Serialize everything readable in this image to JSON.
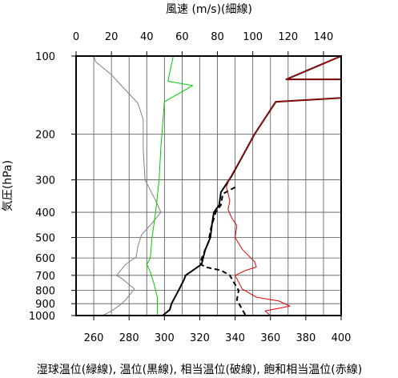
{
  "chart_data": {
    "type": "line",
    "top_axis_label": "風速 (m/s)(細線)",
    "bottom_axis_label": "湿球温位(緑線), 温位(黒線), 相当温位(破線), 飽和相当温位(赤線)",
    "ylabel": "気圧(hPa)",
    "y_scale": "log",
    "y_reversed": true,
    "ylim": [
      100,
      1000
    ],
    "y_ticks": [
      100,
      200,
      300,
      400,
      500,
      600,
      700,
      800,
      900,
      1000
    ],
    "temp_axis": {
      "range": [
        250,
        400
      ],
      "ticks": [
        260,
        280,
        300,
        320,
        340,
        360,
        380,
        400
      ]
    },
    "wind_axis": {
      "range": [
        0,
        150
      ],
      "ticks": [
        0,
        20,
        40,
        60,
        80,
        100,
        120,
        140
      ]
    },
    "grid": true,
    "series": [
      {
        "axis": "wind",
        "color": "#808080",
        "dash": false,
        "points": [
          [
            10,
            100
          ],
          [
            11,
            105
          ],
          [
            20,
            118
          ],
          [
            27,
            133
          ],
          [
            35,
            152
          ],
          [
            38,
            176
          ],
          [
            38,
            230
          ],
          [
            39,
            300
          ],
          [
            45,
            360
          ],
          [
            48,
            400
          ],
          [
            43,
            440
          ],
          [
            37,
            490
          ],
          [
            35,
            540
          ],
          [
            34,
            595
          ],
          [
            28,
            635
          ],
          [
            23,
            700
          ],
          [
            27,
            730
          ],
          [
            33,
            790
          ],
          [
            28,
            870
          ],
          [
            25,
            910
          ],
          [
            19,
            970
          ],
          [
            15,
            1000
          ]
        ]
      },
      {
        "axis": "temp",
        "color": "#00cc00",
        "dash": false,
        "points": [
          [
            305,
            100
          ],
          [
            302,
            125
          ],
          [
            316,
            130
          ],
          [
            300,
            150
          ],
          [
            298,
            225
          ],
          [
            297,
            300
          ],
          [
            295,
            400
          ],
          [
            293,
            500
          ],
          [
            292,
            600
          ],
          [
            290,
            635
          ],
          [
            292,
            680
          ],
          [
            294,
            750
          ],
          [
            296,
            850
          ],
          [
            296,
            920
          ],
          [
            296,
            1000
          ]
        ]
      },
      {
        "axis": "temp",
        "color": "#000000",
        "dash": false,
        "points": [
          [
            400,
            100
          ],
          [
            369,
            123
          ],
          [
            400,
            123
          ],
          [
            400,
            145
          ],
          [
            363,
            150
          ],
          [
            351,
            200
          ],
          [
            338,
            290
          ],
          [
            332,
            335
          ],
          [
            331,
            375
          ],
          [
            328,
            400
          ],
          [
            327,
            440
          ],
          [
            326,
            500
          ],
          [
            323,
            560
          ],
          [
            321,
            635
          ],
          [
            312,
            700
          ],
          [
            311,
            730
          ],
          [
            308,
            800
          ],
          [
            304,
            900
          ],
          [
            303,
            950
          ],
          [
            299,
            1000
          ]
        ]
      },
      {
        "axis": "temp",
        "color": "#000000",
        "dash": true,
        "points": [
          [
            340,
            320
          ],
          [
            333,
            340
          ],
          [
            332,
            375
          ],
          [
            329,
            400
          ],
          [
            326,
            470
          ],
          [
            325,
            520
          ],
          [
            322,
            580
          ],
          [
            320,
            630
          ],
          [
            323,
            650
          ],
          [
            332,
            670
          ],
          [
            337,
            700
          ],
          [
            339,
            740
          ],
          [
            342,
            800
          ],
          [
            341,
            870
          ],
          [
            343,
            920
          ],
          [
            346,
            1000
          ]
        ]
      },
      {
        "axis": "temp",
        "color": "#e00000",
        "dash": false,
        "points": [
          [
            400,
            100
          ],
          [
            369,
            123
          ],
          [
            400,
            123
          ],
          [
            400,
            145
          ],
          [
            363,
            150
          ],
          [
            351,
            200
          ],
          [
            337,
            295
          ],
          [
            335,
            320
          ],
          [
            337,
            360
          ],
          [
            336,
            390
          ],
          [
            338,
            420
          ],
          [
            341,
            450
          ],
          [
            340,
            500
          ],
          [
            344,
            555
          ],
          [
            351,
            620
          ],
          [
            352,
            650
          ],
          [
            346,
            670
          ],
          [
            340,
            700
          ],
          [
            344,
            790
          ],
          [
            352,
            850
          ],
          [
            365,
            880
          ],
          [
            371,
            920
          ],
          [
            357,
            960
          ],
          [
            360,
            1000
          ]
        ]
      }
    ]
  }
}
